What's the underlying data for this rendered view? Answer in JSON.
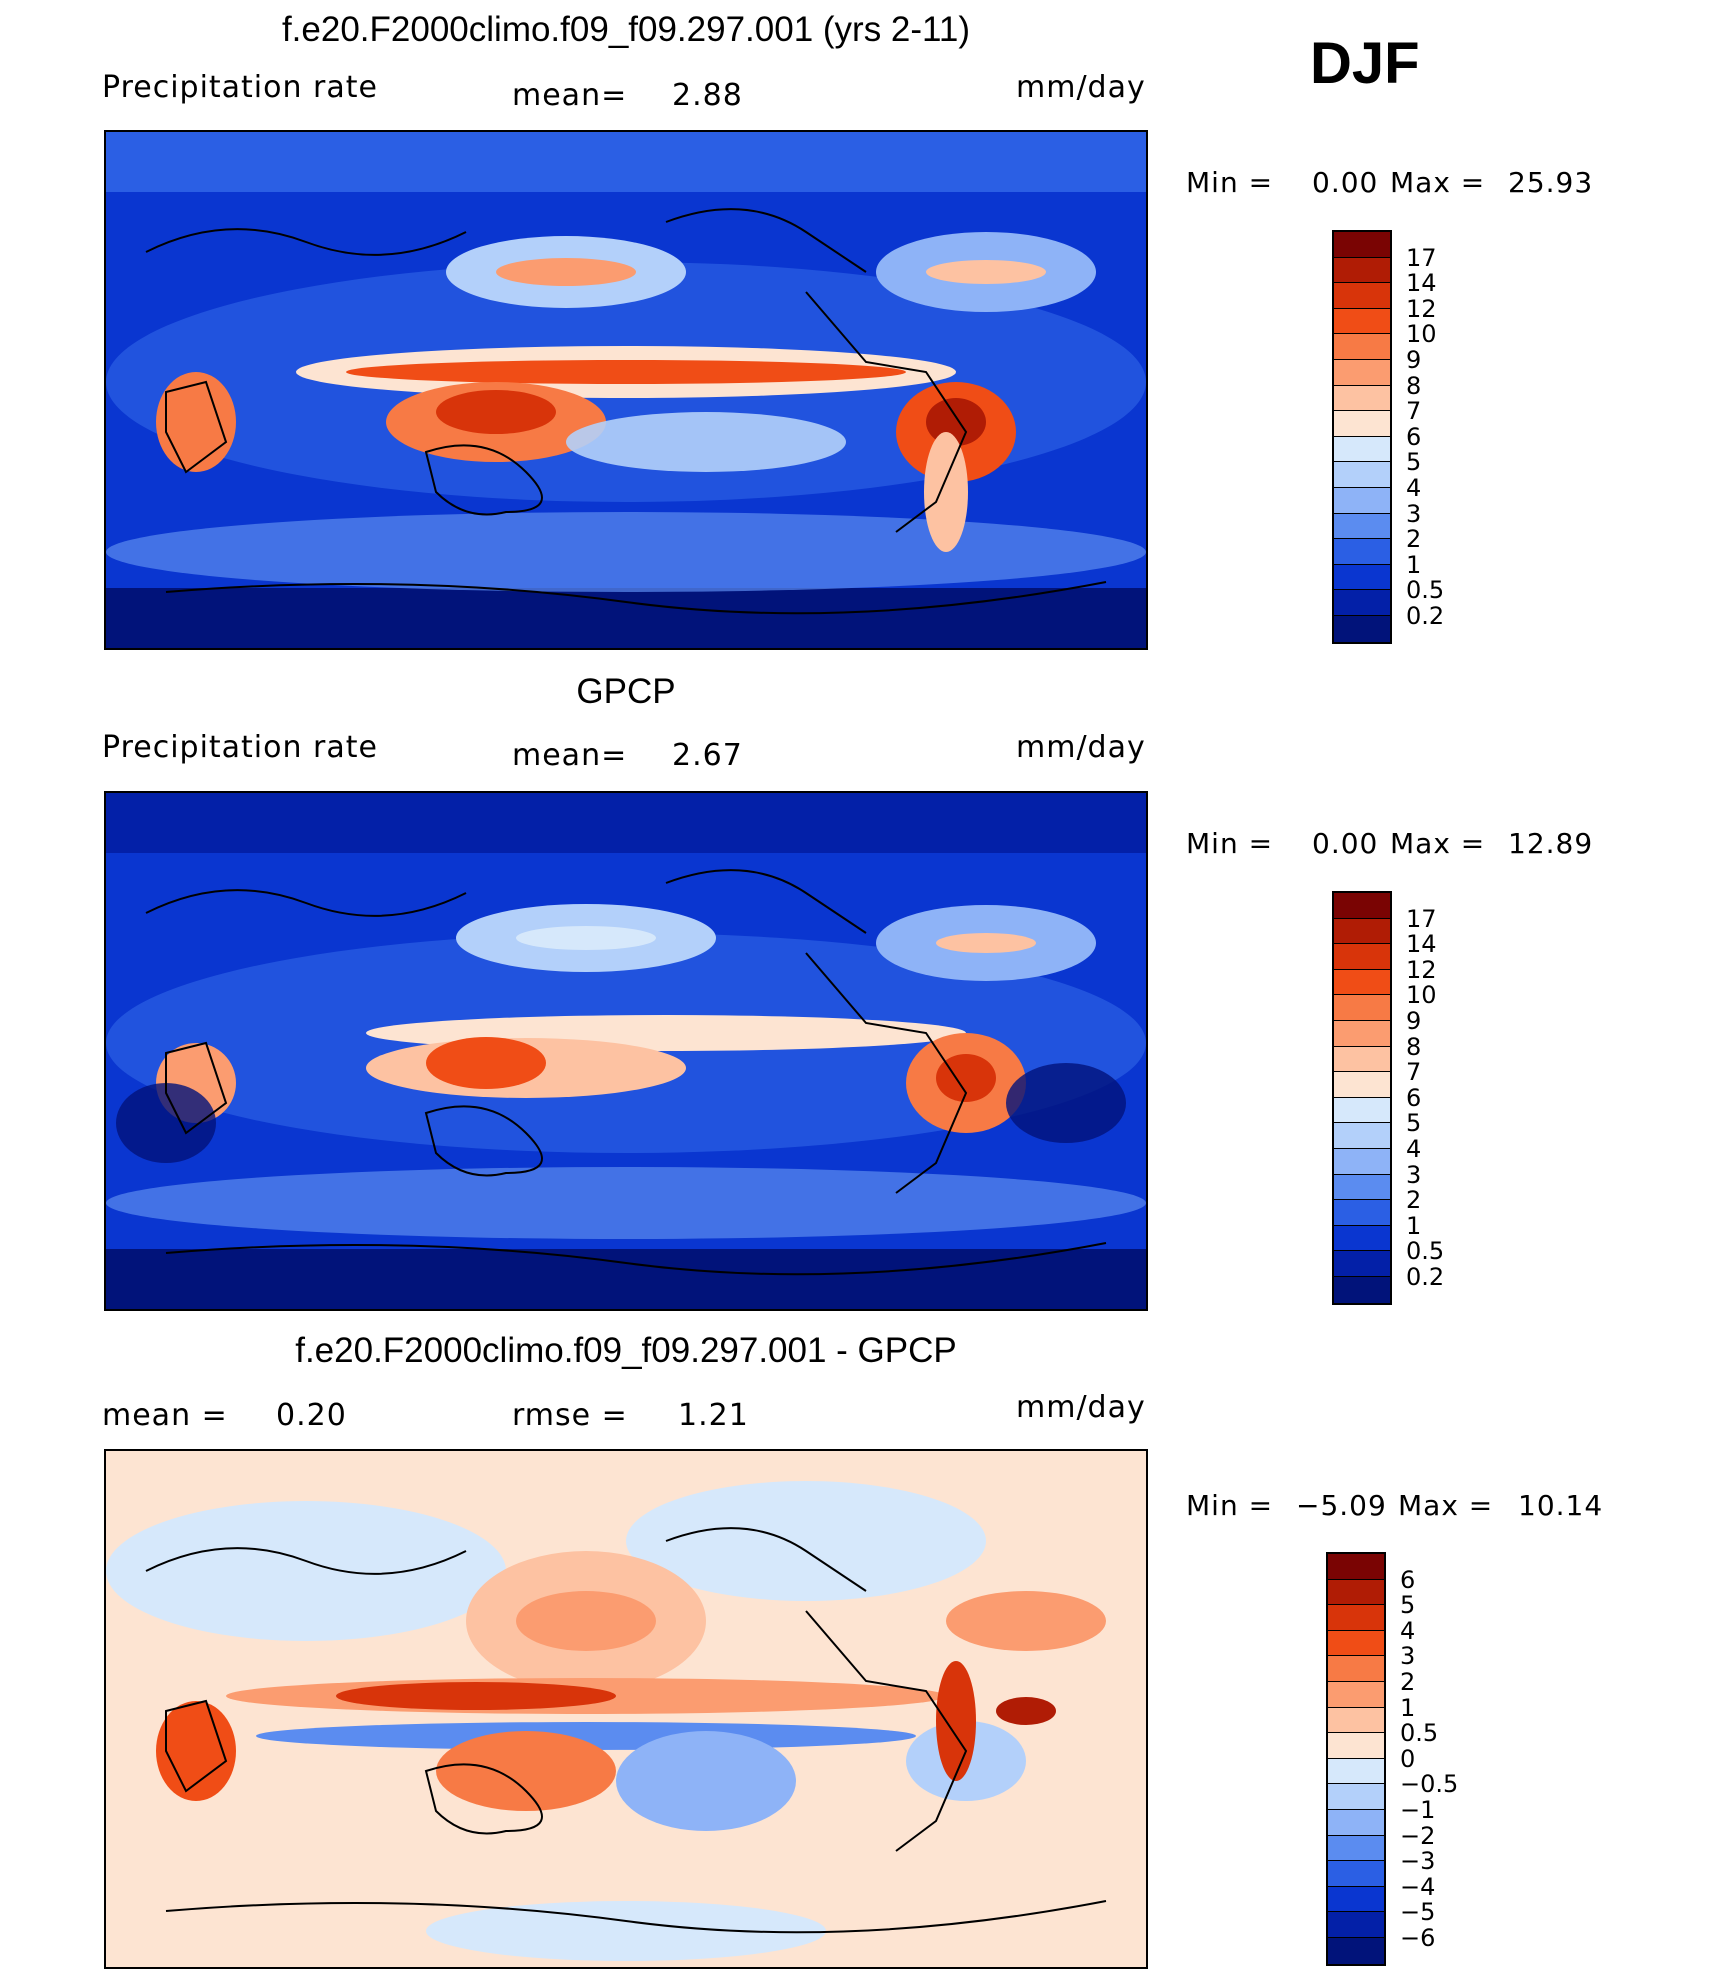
{
  "season": "DJF",
  "units": "mm/day",
  "panels": [
    {
      "title": "f.e20.F2000climo.f09_f09.297.001 (yrs 2-11)",
      "left_label": "Precipitation  rate",
      "center_label": "mean=",
      "center_value": "2.88",
      "min_label": "Min  =",
      "min_value": "0.00",
      "max_label": "Max  =",
      "max_value": "25.93"
    },
    {
      "title": "GPCP",
      "left_label": "Precipitation  rate",
      "center_label": "mean=",
      "center_value": "2.67",
      "min_label": "Min  =",
      "min_value": "0.00",
      "max_label": "Max  =",
      "max_value": "12.89"
    },
    {
      "title": "f.e20.F2000climo.f09_f09.297.001 - GPCP",
      "left_label": "mean  =",
      "left_value": "0.20",
      "center_label": "rmse  =",
      "center_value": "1.21",
      "min_label": "Min  =",
      "min_value": "−5.09",
      "max_label": "Max  =",
      "max_value": "10.14"
    }
  ],
  "colorbars": {
    "precip": {
      "labels": [
        "17",
        "14",
        "12",
        "10",
        "9",
        "8",
        "7",
        "6",
        "5",
        "4",
        "3",
        "2",
        "1",
        "0.5",
        "0.2"
      ],
      "colors": [
        "#7a0403",
        "#b01c05",
        "#d8340a",
        "#f04d16",
        "#f77a45",
        "#fb9c70",
        "#fdc2a2",
        "#fde4d2",
        "#d6e8fb",
        "#b3d0fa",
        "#8eb3f7",
        "#5b8cf0",
        "#2b5fe4",
        "#0a36d0",
        "#0320a8",
        "#01137a"
      ]
    },
    "diff": {
      "labels": [
        "6",
        "5",
        "4",
        "3",
        "2",
        "1",
        "0.5",
        "0",
        "−0.5",
        "−1",
        "−2",
        "−3",
        "−4",
        "−5",
        "−6"
      ],
      "colors": [
        "#7a0403",
        "#b01c05",
        "#d8340a",
        "#f04d16",
        "#f77a45",
        "#fb9c70",
        "#fdc2a2",
        "#fde4d2",
        "#d6e8fb",
        "#b3d0fa",
        "#8eb3f7",
        "#5b8cf0",
        "#2b5fe4",
        "#0a36d0",
        "#0320a8",
        "#01137a"
      ]
    }
  },
  "chart_data": [
    {
      "type": "heatmap",
      "title": "f.e20.F2000climo.f09_f09.297.001 (yrs 2-11)",
      "subtitle": "DJF",
      "variable": "Precipitation  rate",
      "units": "mm/day",
      "mean": 2.88,
      "min": 0.0,
      "max": 25.93,
      "levels": [
        0.2,
        0.5,
        1,
        2,
        3,
        4,
        5,
        6,
        7,
        8,
        9,
        10,
        12,
        14,
        17
      ]
    },
    {
      "type": "heatmap",
      "title": "GPCP",
      "variable": "Precipitation  rate",
      "units": "mm/day",
      "mean": 2.67,
      "min": 0.0,
      "max": 12.89,
      "levels": [
        0.2,
        0.5,
        1,
        2,
        3,
        4,
        5,
        6,
        7,
        8,
        9,
        10,
        12,
        14,
        17
      ]
    },
    {
      "type": "heatmap",
      "title": "f.e20.F2000climo.f09_f09.297.001 - GPCP",
      "units": "mm/day",
      "mean": 0.2,
      "rmse": 1.21,
      "min": -5.09,
      "max": 10.14,
      "levels": [
        -6,
        -5,
        -4,
        -3,
        -2,
        -1,
        -0.5,
        0,
        0.5,
        1,
        2,
        3,
        4,
        5,
        6
      ]
    }
  ]
}
